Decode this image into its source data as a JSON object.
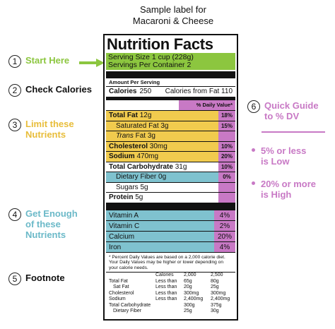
{
  "caption": [
    "Sample label for",
    "Macaroni & Cheese"
  ],
  "annotations": {
    "start": {
      "num": "1",
      "text": "Start Here"
    },
    "calories": {
      "num": "2",
      "text": "Check Calories"
    },
    "limit": {
      "num": "3",
      "lines": [
        "Limit these",
        "Nutrients"
      ]
    },
    "enough": {
      "num": "4",
      "lines": [
        "Get Enough",
        "of these",
        "Nutrients"
      ]
    },
    "footnote": {
      "num": "5",
      "text": "Footnote"
    },
    "guide": {
      "num": "6",
      "lines": [
        "Quick Guide",
        "to % DV"
      ]
    },
    "low": [
      "5% or less",
      "is Low"
    ],
    "high": [
      "20% or more",
      "is High"
    ]
  },
  "label": {
    "title": "Nutrition Facts",
    "serving_size": "Serving Size 1 cup (228g)",
    "servings_per": "Servings Per Container 2",
    "amount_per": "Amount Per Serving",
    "calories_label": "Calories",
    "calories_value": "250",
    "calories_fat": "Calories from Fat 110",
    "dv_header": "% Daily Value*",
    "limit_rows": [
      {
        "name": "Total Fat",
        "amount": "12g",
        "pct": "18%",
        "bold": true
      },
      {
        "name": "Saturated Fat",
        "amount": "3g",
        "pct": "15%",
        "bold": false
      },
      {
        "name": "Trans",
        "amount": "Fat 3g",
        "pct": "",
        "bold": false
      },
      {
        "name": "Cholesterol",
        "amount": "30mg",
        "pct": "10%",
        "bold": true
      },
      {
        "name": "Sodium",
        "amount": "470mg",
        "pct": "20%",
        "bold": true
      }
    ],
    "carb": {
      "name": "Total Carbohydrate",
      "amount": "31g",
      "pct": "10%"
    },
    "fiber": {
      "name": "Dietary Fiber",
      "amount": "0g",
      "pct": "0%"
    },
    "sugars": {
      "name": "Sugars",
      "amount": "5g"
    },
    "protein": {
      "name": "Protein",
      "amount": "5g"
    },
    "vitamins": [
      {
        "name": "Vitamin A",
        "pct": "4%"
      },
      {
        "name": "Vitamin C",
        "pct": "2%"
      },
      {
        "name": "Calcium",
        "pct": "20%"
      },
      {
        "name": "Iron",
        "pct": "4%"
      }
    ],
    "footnote": "* Percent Daily Values are based on a 2,000 calorie diet. Your Daily Values may be higher or lower depending on your calorie needs.",
    "table_header": [
      "",
      "Calories",
      "2,000",
      "2,500"
    ],
    "table_rows": [
      [
        "Total Fat",
        "Less than",
        "65g",
        "80g"
      ],
      [
        "Sat Fat",
        "Less than",
        "20g",
        "25g"
      ],
      [
        "Cholesterol",
        "Less than",
        "300mg",
        "300mg"
      ],
      [
        "Sodium",
        "Less than",
        "2,400mg",
        "2,400mg"
      ],
      [
        "Total Carbohydrate",
        "",
        "300g",
        "375g"
      ],
      [
        "Dietary Fiber",
        "",
        "25g",
        "30g"
      ]
    ]
  },
  "colors": {
    "green": "#8cc63f",
    "yellow": "#f1cb4e",
    "blue": "#7fc2cf",
    "pink": "#c879c5"
  }
}
